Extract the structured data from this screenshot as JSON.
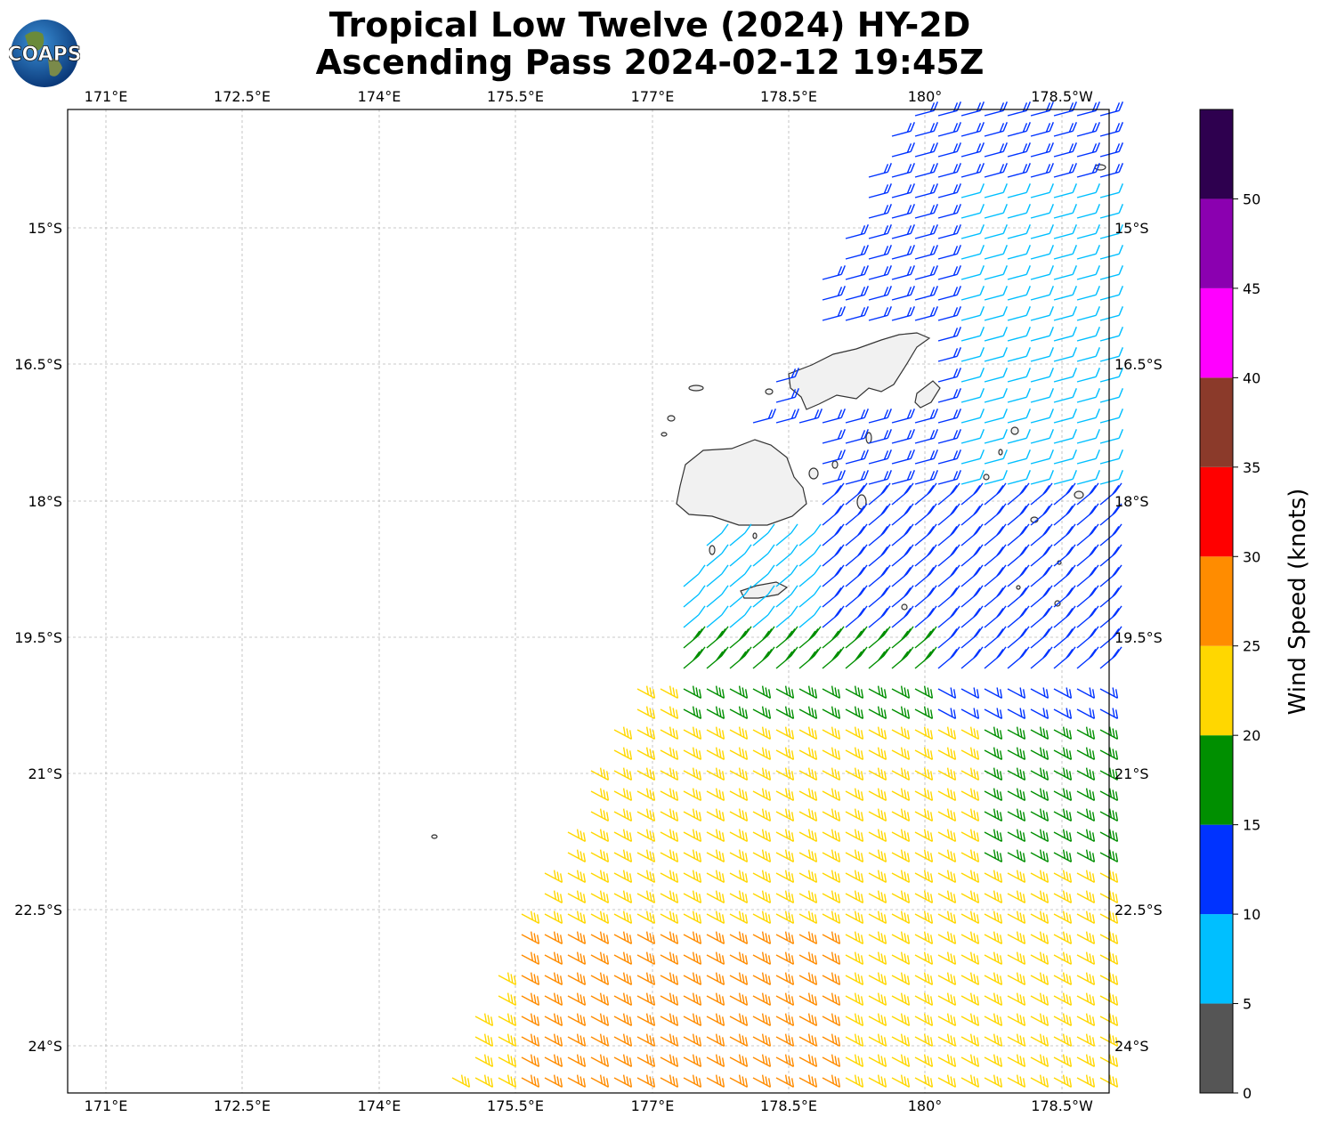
{
  "title": {
    "line1": "Tropical Low Twelve (2024) HY-2D",
    "line2": "Ascending Pass 2024-02-12 19:45Z"
  },
  "logo": {
    "text": "COAPS"
  },
  "map": {
    "lon_labels": [
      "171°E",
      "172.5°E",
      "174°E",
      "175.5°E",
      "177°E",
      "178.5°E",
      "180°",
      "178.5°W"
    ],
    "lat_labels": [
      "15°S",
      "16.5°S",
      "18°S",
      "19.5°S",
      "21°S",
      "22.5°S",
      "24°S"
    ],
    "grid": true,
    "islands": "Fiji"
  },
  "colorbar": {
    "label": "Wind Speed (knots)",
    "ticks": [
      "0",
      "5",
      "10",
      "15",
      "20",
      "25",
      "30",
      "35",
      "40",
      "45",
      "50"
    ],
    "colors": [
      "#555555",
      "#00bfff",
      "#0033ff",
      "#008f00",
      "#ffd700",
      "#ff8c00",
      "#ff0000",
      "#8b3a2a",
      "#ff00ff",
      "#8b00b0",
      "#2e004f"
    ]
  }
}
